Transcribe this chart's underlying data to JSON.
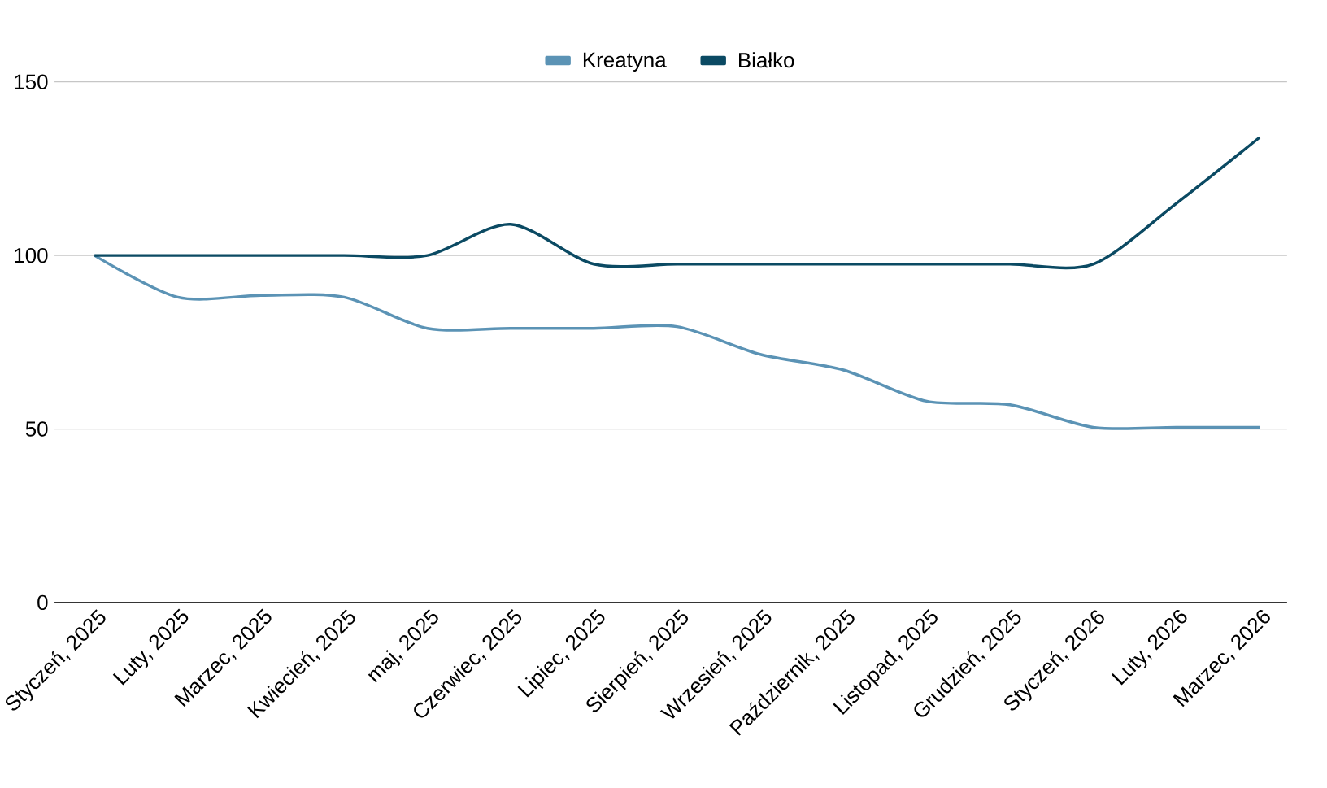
{
  "chart_data": {
    "type": "line",
    "categories": [
      "Styczeń, 2025",
      "Luty, 2025",
      "Marzec, 2025",
      "Kwiecień, 2025",
      "maj, 2025",
      "Czerwiec, 2025",
      "Lipiec, 2025",
      "Sierpień, 2025",
      "Wrzesień, 2025",
      "Październik, 2025",
      "Listopad, 2025",
      "Grudzień, 2025",
      "Styczeń, 2026",
      "Luty, 2026",
      "Marzec, 2026"
    ],
    "series": [
      {
        "name": "Kreatyna",
        "color": "#5b93b5",
        "values": [
          100,
          88,
          88.5,
          88,
          79,
          79,
          79,
          79.5,
          71.5,
          67,
          58,
          57,
          50.5,
          50.5,
          50.5
        ]
      },
      {
        "name": "Białko",
        "color": "#0b4a63",
        "values": [
          100,
          100,
          100,
          100,
          100,
          109,
          97.5,
          97.5,
          97.5,
          97.5,
          97.5,
          97.5,
          97.5,
          115,
          134
        ]
      }
    ],
    "ylim": [
      0,
      150
    ],
    "yticks": [
      0,
      50,
      100,
      150
    ],
    "grid": "y",
    "legend": "top",
    "marker": "none",
    "line_style": "solid"
  }
}
